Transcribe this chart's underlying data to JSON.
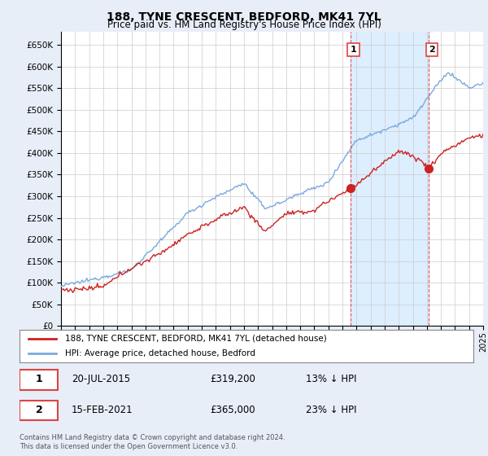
{
  "title": "188, TYNE CRESCENT, BEDFORD, MK41 7YL",
  "subtitle": "Price paid vs. HM Land Registry's House Price Index (HPI)",
  "hpi_label": "HPI: Average price, detached house, Bedford",
  "price_label": "188, TYNE CRESCENT, BEDFORD, MK41 7YL (detached house)",
  "footer": "Contains HM Land Registry data © Crown copyright and database right 2024.\nThis data is licensed under the Open Government Licence v3.0.",
  "ylim": [
    0,
    680000
  ],
  "yticks": [
    0,
    50000,
    100000,
    150000,
    200000,
    250000,
    300000,
    350000,
    400000,
    450000,
    500000,
    550000,
    600000,
    650000
  ],
  "bg_color": "#e8eef8",
  "plot_bg_color": "#ffffff",
  "shade_color": "#ddeeff",
  "hpi_color": "#7aaadd",
  "price_color": "#cc2222",
  "dashed_color": "#dd4444",
  "marker1_date": 2015.55,
  "marker1_value": 319200,
  "marker1_label": "1",
  "marker2_date": 2021.12,
  "marker2_value": 365000,
  "marker2_label": "2",
  "sale1_text": "20-JUL-2015",
  "sale1_price": "£319,200",
  "sale1_hpi": "13% ↓ HPI",
  "sale2_text": "15-FEB-2021",
  "sale2_price": "£365,000",
  "sale2_hpi": "23% ↓ HPI",
  "xmin": 1995,
  "xmax": 2025
}
